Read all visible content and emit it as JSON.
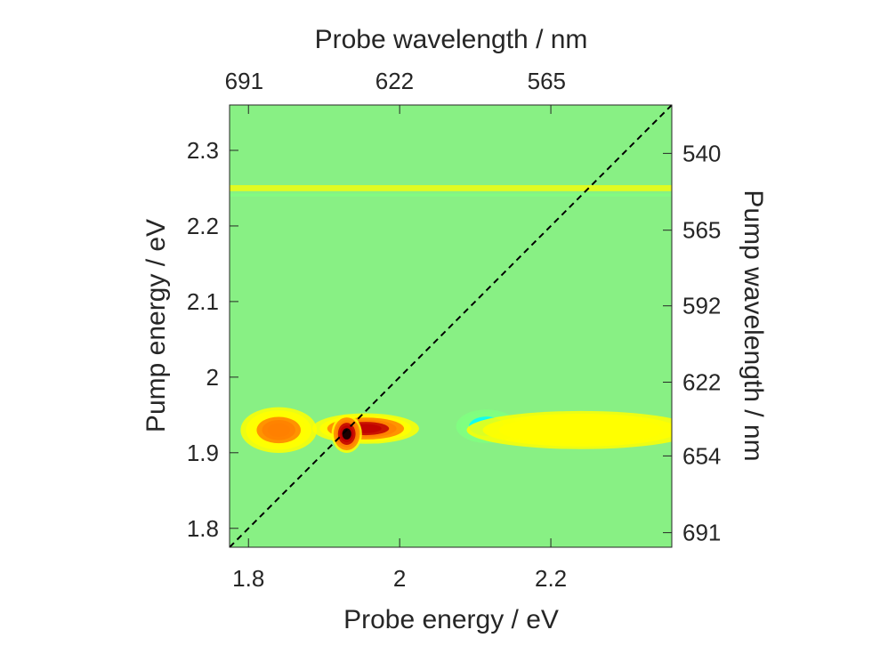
{
  "chart_data": {
    "type": "heatmap",
    "title": "",
    "xlabel": "Probe energy / eV",
    "ylabel": "Pump energy / eV",
    "x2label": "Probe wavelength / nm",
    "y2label": "Pump wavelength / nm",
    "xlim": [
      1.775,
      2.36
    ],
    "ylim": [
      1.775,
      2.36
    ],
    "x_ticks": [
      1.8,
      2.0,
      2.2
    ],
    "x_tick_labels": [
      "1.8",
      "2",
      "2.2"
    ],
    "y_ticks": [
      1.8,
      1.9,
      2.0,
      2.1,
      2.2,
      2.3
    ],
    "y_tick_labels": [
      "1.8",
      "1.9",
      "2",
      "2.1",
      "2.2",
      "2.3"
    ],
    "x2_ticks": [
      691,
      622,
      565
    ],
    "y2_ticks": [
      691,
      654,
      622,
      592,
      565,
      540
    ],
    "diagonal_line": {
      "x": [
        1.775,
        2.36
      ],
      "y": [
        1.775,
        2.36
      ],
      "style": "dashed",
      "color": "#000000"
    },
    "background_level": 0,
    "features": [
      {
        "x_center": 1.84,
        "y_center": 1.93,
        "x_width": 0.05,
        "y_width": 0.03,
        "amplitude": 0.45
      },
      {
        "x_center": 1.955,
        "y_center": 1.932,
        "x_width": 0.07,
        "y_width": 0.02,
        "amplitude": 0.85
      },
      {
        "x_center": 1.93,
        "y_center": 1.925,
        "x_width": 0.02,
        "y_width": 0.025,
        "amplitude": 1.0
      },
      {
        "x_center": 2.115,
        "y_center": 1.935,
        "x_width": 0.04,
        "y_width": 0.022,
        "amplitude": -0.45
      },
      {
        "x_center": 2.24,
        "y_center": 1.93,
        "x_width": 0.15,
        "y_width": 0.025,
        "amplitude": 0.2
      }
    ],
    "bands": [
      {
        "y": 2.241,
        "width": 0.004,
        "amplitude": -0.25
      },
      {
        "y": 2.25,
        "width": 0.008,
        "amplitude": 0.08
      }
    ],
    "colormap": [
      "#00008f",
      "#0080ff",
      "#00ffff",
      "#80ff80",
      "#ffff00",
      "#ff8000",
      "#c00000",
      "#000000"
    ],
    "grid": false
  }
}
